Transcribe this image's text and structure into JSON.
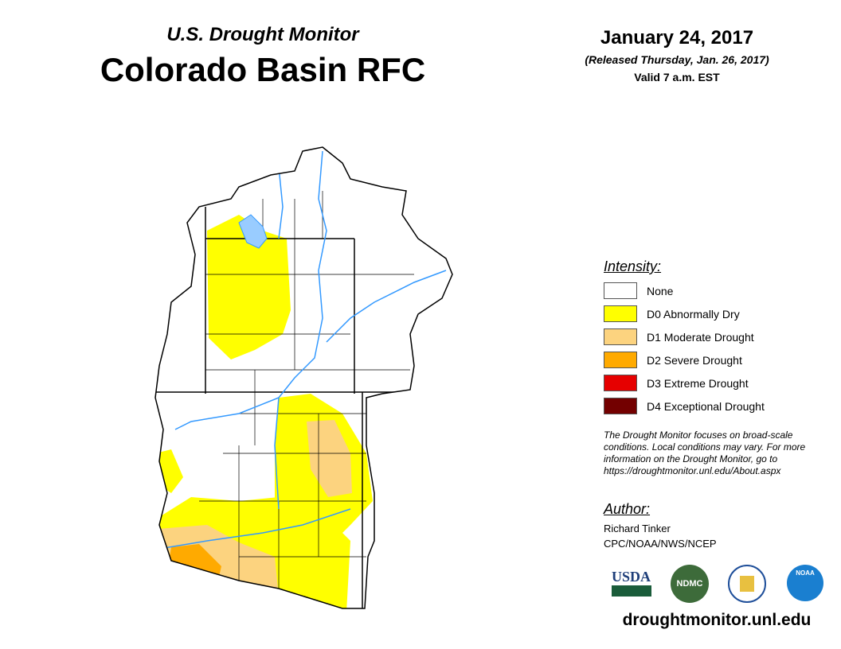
{
  "header": {
    "subtitle": "U.S. Drought Monitor",
    "title": "Colorado Basin RFC",
    "date": "January 24, 2017",
    "released": "(Released Thursday, Jan. 26, 2017)",
    "valid": "Valid 7 a.m. EST"
  },
  "legend": {
    "heading": "Intensity:",
    "items": [
      {
        "label": "None",
        "color": "#ffffff"
      },
      {
        "label": "D0 Abnormally Dry",
        "color": "#ffff00"
      },
      {
        "label": "D1 Moderate Drought",
        "color": "#fcd37f"
      },
      {
        "label": "D2 Severe Drought",
        "color": "#ffaa00"
      },
      {
        "label": "D3 Extreme Drought",
        "color": "#e60000"
      },
      {
        "label": "D4 Exceptional Drought",
        "color": "#730000"
      }
    ]
  },
  "note": "The Drought Monitor focuses on broad-scale conditions. Local conditions may vary. For more information on the Drought Monitor, go to https://droughtmonitor.unl.edu/About.aspx",
  "author": {
    "heading": "Author:",
    "name": "Richard Tinker",
    "org": "CPC/NOAA/NWS/NCEP"
  },
  "logos": {
    "usda": "USDA",
    "ndmc": "NDMC",
    "noaa": "NOAA",
    "commerce": "Department of Commerce"
  },
  "website": "droughtmonitor.unl.edu",
  "colors": {
    "river": "#3399ff",
    "lake": "#99ccff"
  }
}
